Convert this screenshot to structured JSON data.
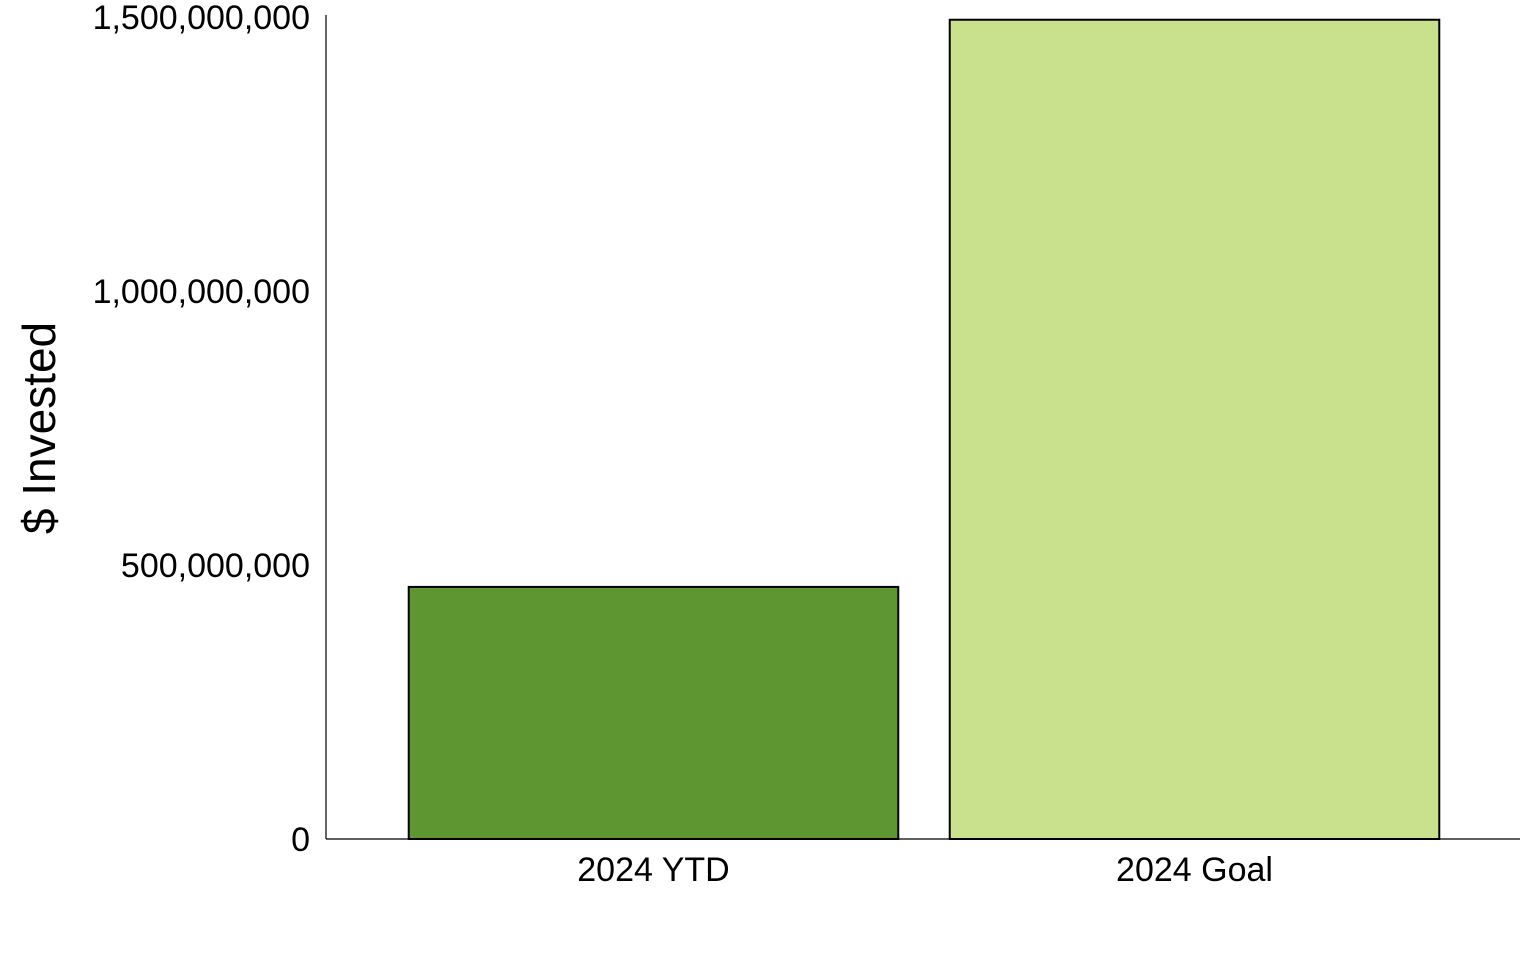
{
  "chart_data": {
    "type": "bar",
    "categories": [
      "2024 YTD",
      "2024 Goal"
    ],
    "series": [
      {
        "values": [
          460000000,
          1495000000
        ],
        "colors": [
          "#5e9732",
          "#c9e08d"
        ]
      }
    ],
    "title": "",
    "xlabel": "",
    "ylabel": "$ Invested",
    "ylim": [
      0,
      1500000000
    ],
    "yticks": [
      0,
      500000000,
      1000000000,
      1500000000
    ],
    "ytick_labels": [
      "0",
      "500,000,000",
      "1,000,000,000",
      "1,500,000,000"
    ],
    "grid": false,
    "legend": "none"
  }
}
